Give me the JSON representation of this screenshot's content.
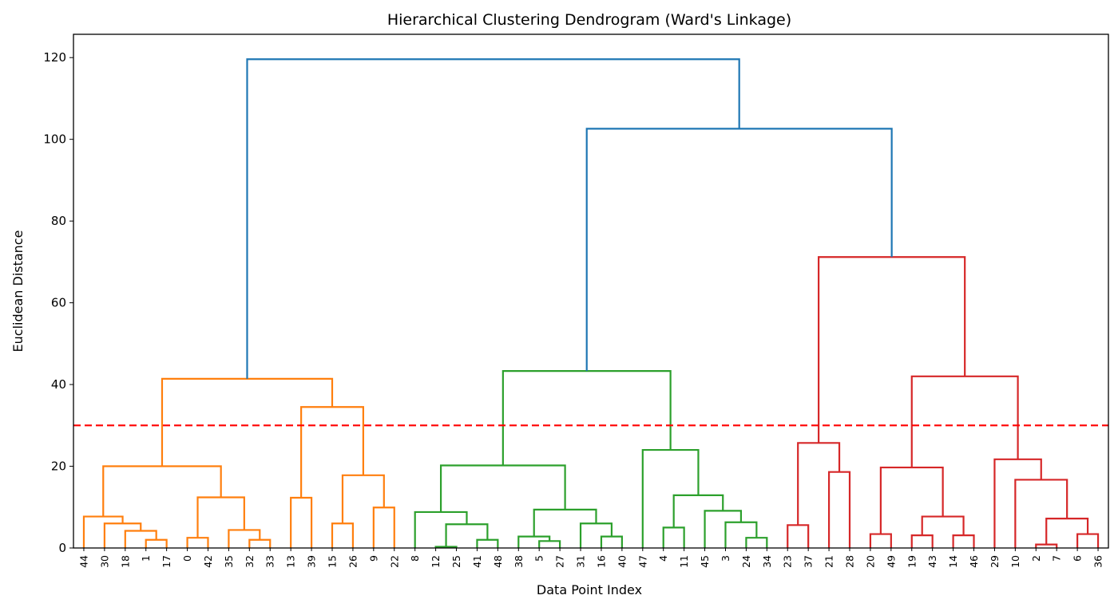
{
  "chart_data": {
    "type": "dendrogram",
    "title": "Hierarchical Clustering Dendrogram (Ward's Linkage)",
    "xlabel": "Data Point Index",
    "ylabel": "Euclidean Distance",
    "ylim": [
      0,
      125.7
    ],
    "yticks": [
      0,
      20,
      40,
      60,
      80,
      100,
      120
    ],
    "grid": false,
    "threshold": {
      "value": 30,
      "color": "#ff0000",
      "style": "dashed"
    },
    "above_threshold_color": "#1f77b4",
    "leaf_order": [
      44,
      30,
      18,
      1,
      17,
      0,
      42,
      35,
      32,
      33,
      13,
      39,
      15,
      26,
      9,
      22,
      8,
      12,
      25,
      41,
      48,
      38,
      5,
      27,
      31,
      16,
      40,
      47,
      4,
      11,
      45,
      3,
      24,
      34,
      23,
      37,
      21,
      28,
      20,
      49,
      19,
      43,
      14,
      46,
      29,
      10,
      2,
      7,
      6,
      36
    ],
    "tree": [
      {
        "color": "#ff7f0e",
        "node": [
          [
            [
              44,
              [
                30,
                [
                  18,
                  [
                    1,
                    17,
                    2.0
                  ],
                  4.2
                ],
                6.0
              ],
              7.7
            ],
            [
              [
                0,
                42,
                2.5
              ],
              [
                35,
                [
                  32,
                  33,
                  2.0
                ],
                4.4
              ],
              12.4
            ],
            20.0
          ],
          [
            [
              13,
              39,
              12.3
            ],
            [
              [
                15,
                26,
                6.0
              ],
              [
                9,
                22,
                9.9
              ],
              17.8
            ],
            34.5
          ],
          41.4
        ]
      },
      [
        {
          "color": "#2ca02c",
          "node": [
            [
              [
                8,
                [
                  [
                    12,
                    25,
                    0.3
                  ],
                  [
                    41,
                    48,
                    2.0
                  ],
                  5.8
                ],
                8.8
              ],
              [
                [
                  38,
                  [
                    5,
                    27,
                    1.7
                  ],
                  2.8
                ],
                [
                  31,
                  [
                    16,
                    40,
                    2.8
                  ],
                  6.0
                ],
                9.4
              ],
              20.2
            ],
            [
              47,
              [
                [
                  4,
                  11,
                  5.0
                ],
                [
                  45,
                  [
                    3,
                    [
                      24,
                      34,
                      2.5
                    ],
                    6.3
                  ],
                  9.1
                ],
                12.9
              ],
              24.0
            ],
            43.3
          ]
        },
        {
          "color": "#d62728",
          "node": [
            [
              [
                23,
                37,
                5.6
              ],
              [
                21,
                28,
                18.6
              ],
              25.7
            ],
            [
              [
                [
                  20,
                  49,
                  3.4
                ],
                [
                  [
                    19,
                    43,
                    3.1
                  ],
                  [
                    14,
                    46,
                    3.1
                  ],
                  7.7
                ],
                19.7
              ],
              [
                29,
                [
                  10,
                  [
                    [
                      2,
                      7,
                      0.85
                    ],
                    [
                      6,
                      36,
                      3.4
                    ],
                    7.2
                  ],
                  16.7
                ],
                21.7
              ],
              42.0
            ],
            71.2
          ]
        },
        102.6
      ],
      119.6
    ]
  }
}
